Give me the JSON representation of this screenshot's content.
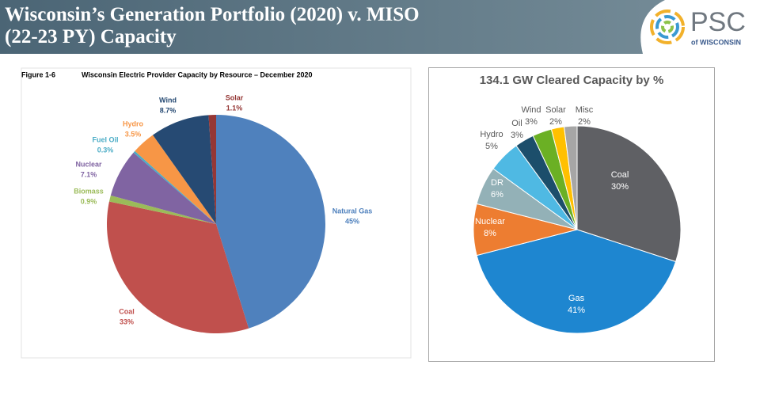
{
  "header": {
    "title": "Wisconsin’s Generation Portfolio (2020) v. MISO (22-23 PY) Capacity",
    "logo_text": "PSC",
    "logo_sub": "of WISCONSIN"
  },
  "chart_data": [
    {
      "type": "pie",
      "figure_label": "Figure 1-6",
      "title": "Wisconsin Electric Provider Capacity by Resource – December 2020",
      "categories": [
        "Natural Gas",
        "Coal",
        "Biomass",
        "Nuclear",
        "Fuel Oil",
        "Hydro",
        "Wind",
        "Solar"
      ],
      "values": [
        45,
        33,
        0.9,
        7.1,
        0.3,
        3.5,
        8.7,
        1.1
      ],
      "value_labels": [
        "45%",
        "33%",
        "0.9%",
        "7.1%",
        "0.3%",
        "3.5%",
        "8.7%",
        "1.1%"
      ],
      "colors": [
        "#4f81bd",
        "#c0504d",
        "#9bbb59",
        "#8064a2",
        "#4bacc6",
        "#f79646",
        "#264a73",
        "#953735"
      ]
    },
    {
      "type": "pie",
      "title": "134.1 GW Cleared Capacity by %",
      "categories": [
        "Coal",
        "Gas",
        "Nuclear",
        "DR",
        "Hydro",
        "Oil",
        "Wind",
        "Solar",
        "Misc"
      ],
      "values": [
        30,
        41,
        8,
        6,
        5,
        3,
        3,
        2,
        2
      ],
      "value_labels": [
        "30%",
        "41%",
        "8%",
        "6%",
        "5%",
        "3%",
        "3%",
        "2%",
        "2%"
      ],
      "colors": [
        "#5f6064",
        "#1e86d0",
        "#ed7d31",
        "#93b1b7",
        "#4fb9e3",
        "#1c4e6b",
        "#6bb024",
        "#ffc000",
        "#a6a6a6"
      ]
    }
  ]
}
